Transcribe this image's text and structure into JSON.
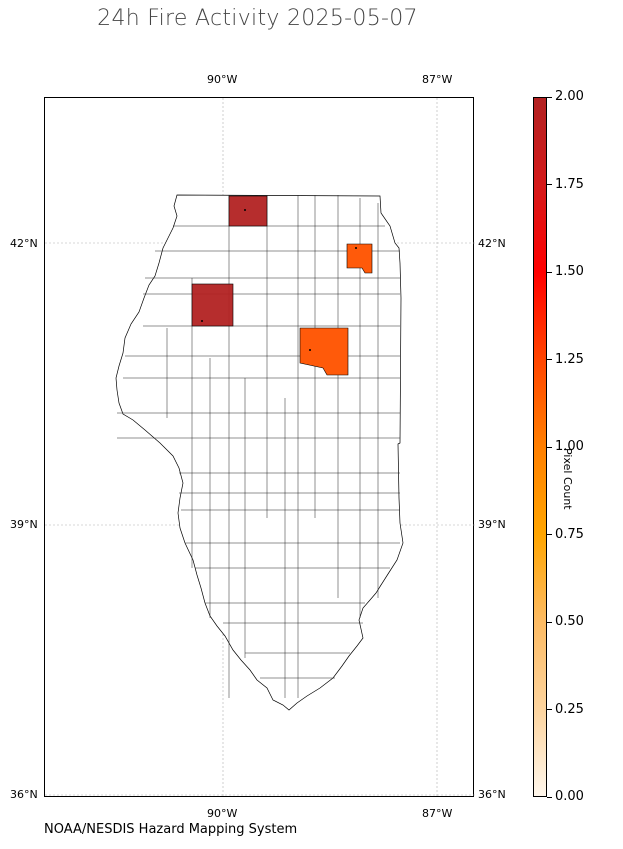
{
  "title": "24h Fire Activity 2025-05-07",
  "source_label": "NOAA/NESDIS Hazard Mapping System",
  "axes": {
    "lon_labels": [
      "90°W",
      "87°W"
    ],
    "lat_labels": [
      "42°N",
      "39°N",
      "36°N"
    ]
  },
  "colorbar": {
    "label": "Pixel Count",
    "min": 0,
    "max": 2,
    "ticks": [
      "0.00",
      "0.25",
      "0.50",
      "0.75",
      "1.00",
      "1.25",
      "1.50",
      "1.75",
      "2.00"
    ],
    "colors": [
      "#fff7ec",
      "#fdd49e",
      "#fdbb63",
      "#ffa500",
      "#ff7f00",
      "#ff4500",
      "#ff0000",
      "#d41a1a",
      "#b22222"
    ]
  },
  "map": {
    "region": "Illinois",
    "projection": "PlateCarree",
    "fire_counties": [
      {
        "position": "north-central border",
        "pixel_count": 2,
        "color": "#b22222"
      },
      {
        "position": "northwest",
        "pixel_count": 2,
        "color": "#b22222"
      },
      {
        "position": "northeast",
        "pixel_count": 1,
        "color": "#ff5a0a"
      },
      {
        "position": "east-central",
        "pixel_count": 1,
        "color": "#ff5a0a"
      }
    ]
  }
}
